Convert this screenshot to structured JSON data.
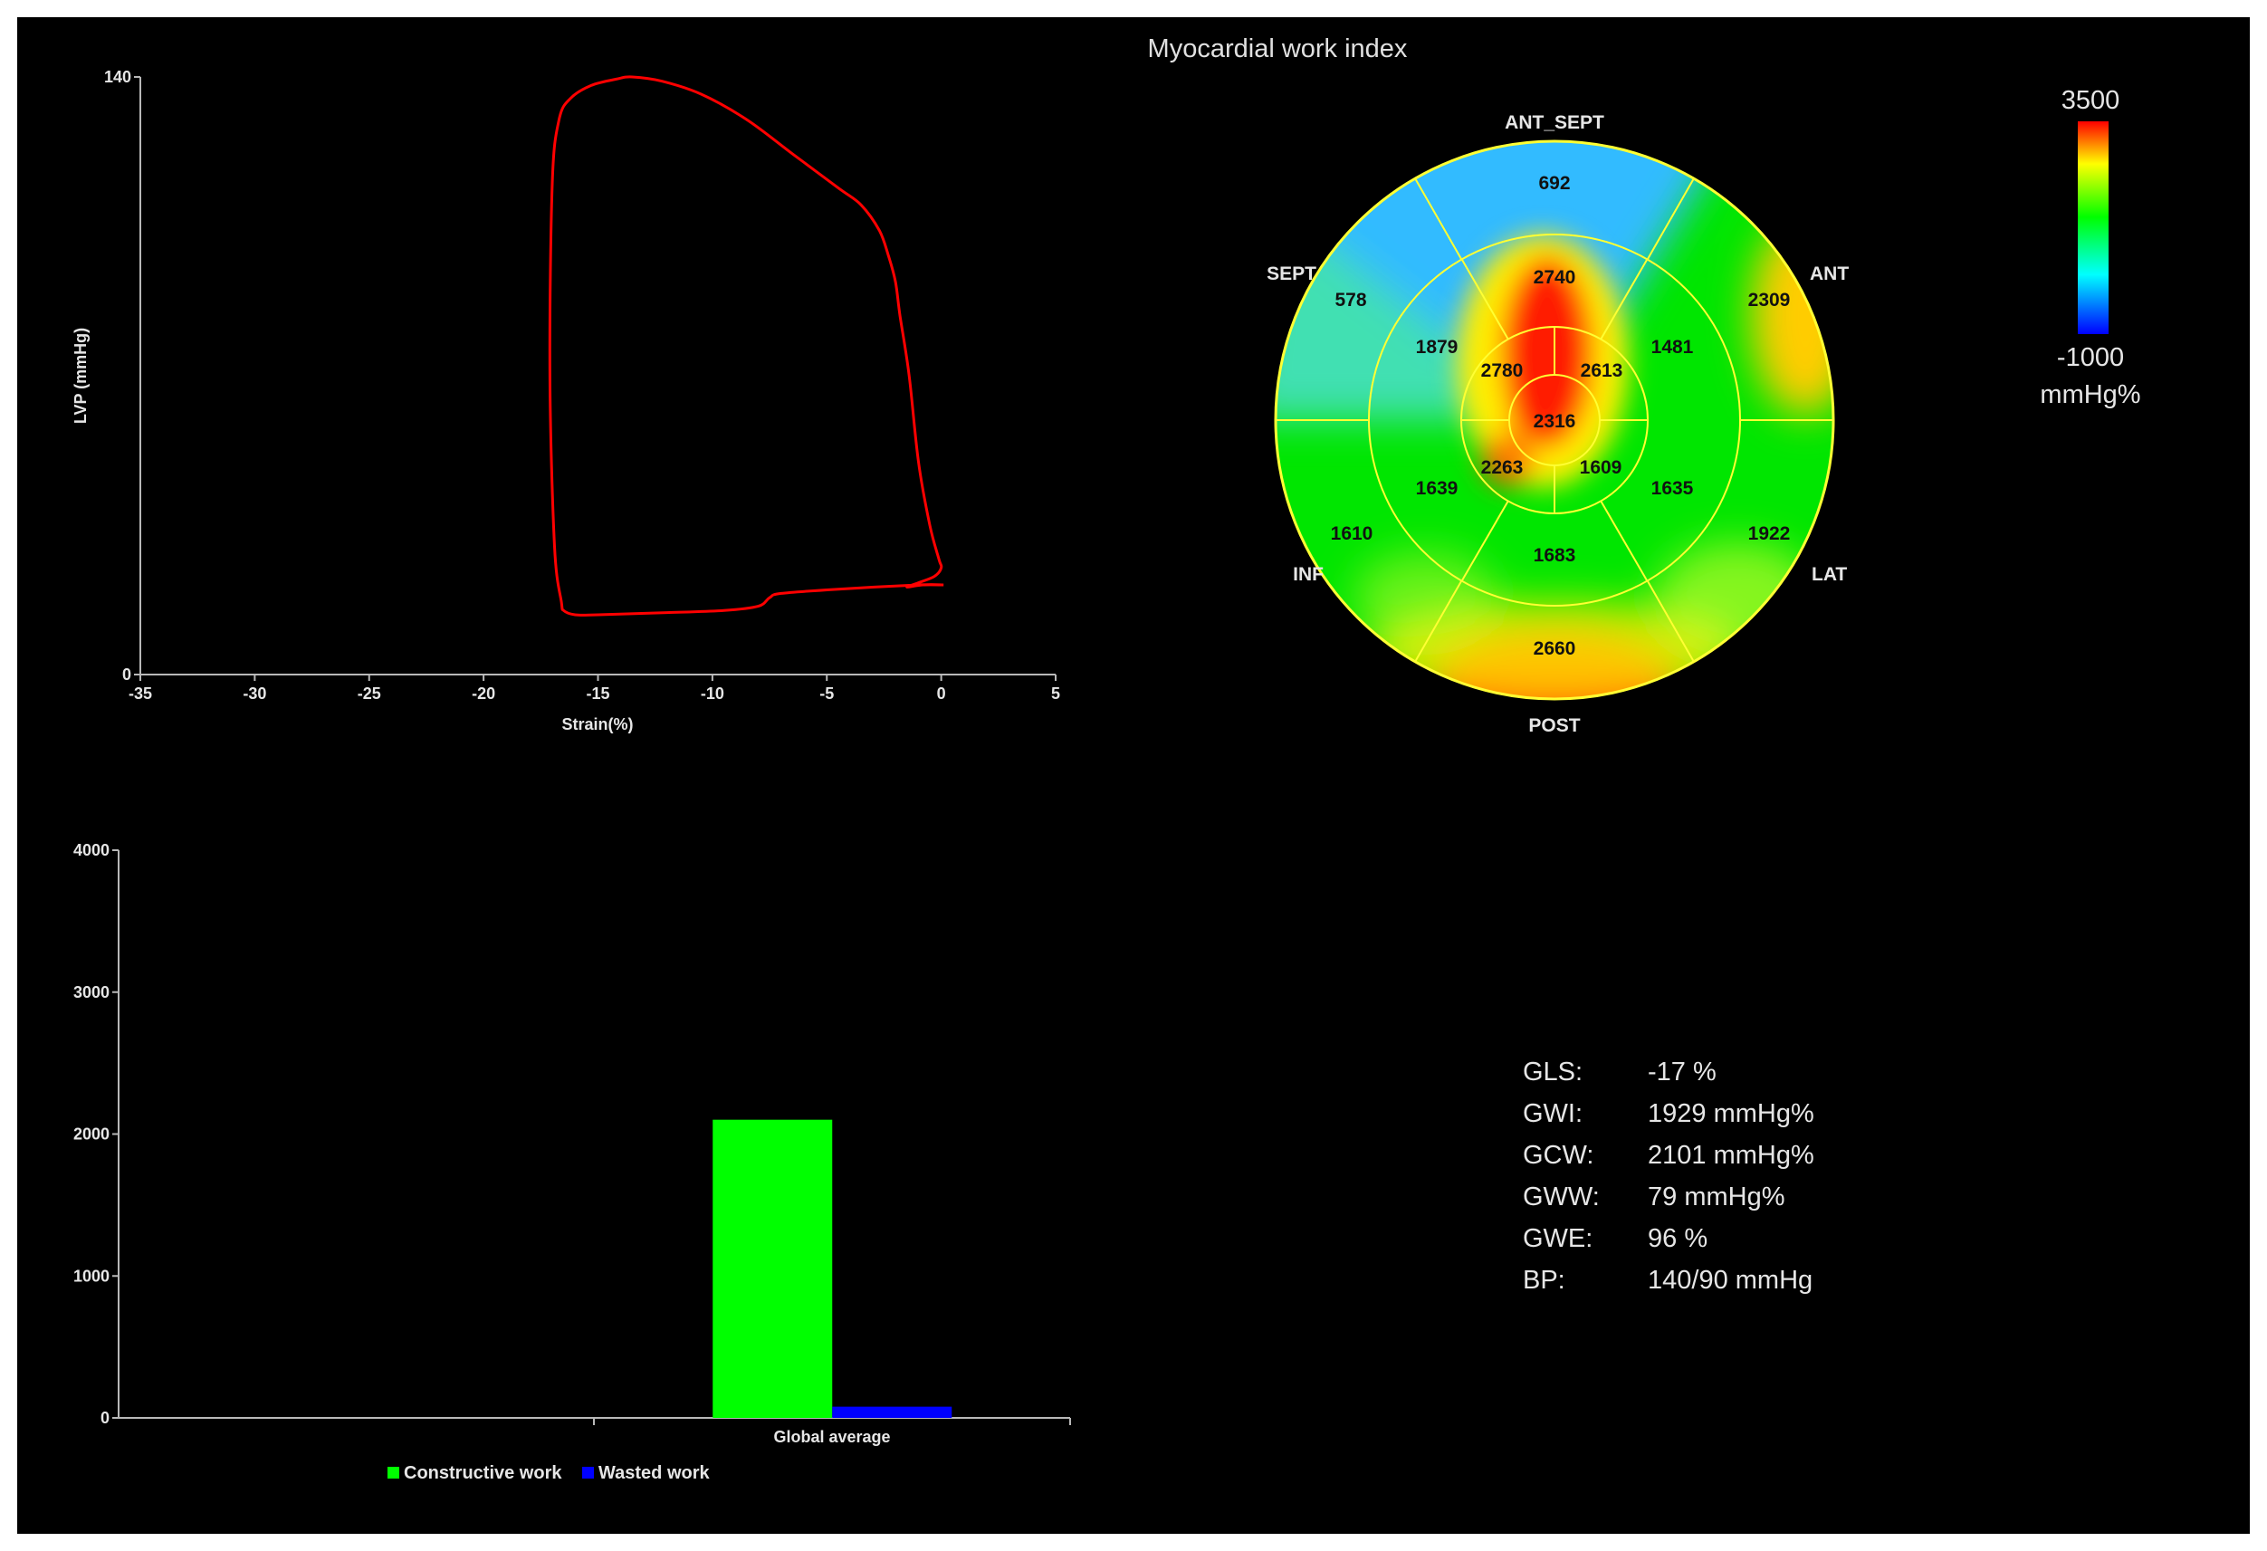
{
  "colors": {
    "background": "#000000",
    "loop": "#ff0000",
    "constructive": "#00ff00",
    "wasted": "#0000ff",
    "bullseye_lines": "#ffff33",
    "scale_top": "#ff0000",
    "scale_bottom": "#0000ff"
  },
  "chart_data": [
    {
      "type": "line",
      "title": "",
      "xlabel": "Strain(%)",
      "ylabel": "LVP (mmHg)",
      "xlim": [
        -35,
        5
      ],
      "ylim": [
        0,
        140
      ],
      "x_ticks": [
        "-35",
        "-30",
        "-25",
        "-20",
        "-15",
        "-10",
        "-5",
        "0",
        "5"
      ],
      "y_ticks": [
        "0",
        "140"
      ],
      "series": [
        {
          "color": "#ff0000",
          "x": [
            0.1,
            -1.0,
            -4.5,
            -7.0,
            -7.5,
            -8.0,
            -9.5,
            -12.0,
            -15.0,
            -16.0,
            -16.5,
            -16.6,
            -16.9,
            -17.1,
            -17.0,
            -16.7,
            -16.2,
            -15.3,
            -14.2,
            -13.5,
            -12.2,
            -10.5,
            -8.5,
            -6.5,
            -4.5,
            -3.5,
            -2.7,
            -2.3,
            -2.0,
            -1.8,
            -1.4,
            -1.0,
            -0.5,
            -0.1,
            0.0,
            -0.3,
            -1.0,
            -1.5,
            -0.8,
            0.1
          ],
          "y": [
            21,
            21,
            20,
            19,
            18,
            16,
            15,
            14.5,
            14,
            14,
            15,
            17,
            30,
            70,
            115,
            130,
            135,
            138,
            139.5,
            140,
            139,
            136,
            130,
            122,
            114,
            110,
            104,
            98,
            92,
            84,
            70,
            50,
            35,
            27,
            25,
            23,
            21.5,
            20.5,
            21,
            21
          ]
        }
      ]
    },
    {
      "type": "bar",
      "title": "",
      "categories": [
        "",
        "Global average"
      ],
      "ylim": [
        0,
        4000
      ],
      "y_ticks": [
        "0",
        "1000",
        "2000",
        "3000",
        "4000"
      ],
      "series": [
        {
          "name": "Constructive work",
          "color": "#00ff00",
          "values": [
            null,
            2101
          ]
        },
        {
          "name": "Wasted work",
          "color": "#0000ff",
          "values": [
            null,
            79
          ]
        }
      ]
    },
    {
      "type": "heatmap",
      "title": "Myocardial work index",
      "scale_max": "3500",
      "scale_min": "-1000",
      "scale_unit": "mmHg%",
      "wall_labels": [
        "ANT_SEPT",
        "ANT",
        "LAT",
        "POST",
        "INF",
        "SEPT"
      ],
      "segments": {
        "basal": [
          692,
          2309,
          1922,
          2660,
          1610,
          578
        ],
        "mid": [
          2740,
          1481,
          1635,
          1683,
          1639,
          1879
        ],
        "apical": [
          2613,
          1609,
          2263,
          2780
        ],
        "apex": 2316
      }
    }
  ],
  "stats": [
    {
      "label": "GLS:",
      "value": "-17 %"
    },
    {
      "label": "GWI:",
      "value": "1929 mmHg%"
    },
    {
      "label": "GCW:",
      "value": "2101 mmHg%"
    },
    {
      "label": "GWW:",
      "value": "79 mmHg%"
    },
    {
      "label": "GWE:",
      "value": "96 %"
    },
    {
      "label": "BP:",
      "value": "140/90 mmHg"
    }
  ]
}
